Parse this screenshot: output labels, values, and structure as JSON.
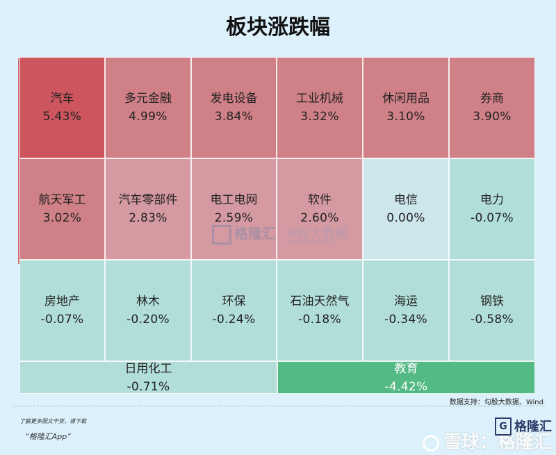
{
  "title": "板块涨跌幅",
  "chart_data": {
    "type": "heatmap",
    "title": "板块涨跌幅",
    "rows": [
      [
        {
          "name": "汽车",
          "value": "5.43%"
        },
        {
          "name": "多元金融",
          "value": "4.99%"
        },
        {
          "name": "发电设备",
          "value": "3.84%"
        },
        {
          "name": "工业机械",
          "value": "3.32%"
        },
        {
          "name": "休闲用品",
          "value": "3.10%"
        },
        {
          "name": "券商",
          "value": "3.90%"
        }
      ],
      [
        {
          "name": "航天军工",
          "value": "3.02%"
        },
        {
          "name": "汽车零部件",
          "value": "2.83%"
        },
        {
          "name": "电工电网",
          "value": "2.59%"
        },
        {
          "name": "软件",
          "value": "2.60%"
        },
        {
          "name": "电信",
          "value": "0.00%"
        },
        {
          "name": "电力",
          "value": "-0.07%"
        }
      ],
      [
        {
          "name": "房地产",
          "value": "-0.07%"
        },
        {
          "name": "林木",
          "value": "-0.20%"
        },
        {
          "name": "环保",
          "value": "-0.24%"
        },
        {
          "name": "石油天然气",
          "value": "-0.18%"
        },
        {
          "name": "海运",
          "value": "-0.34%"
        },
        {
          "name": "钢铁",
          "value": "-0.58%"
        }
      ],
      [
        {
          "name": "日用化工",
          "value": "-0.71%"
        },
        {
          "name": "教育",
          "value": "-4.42%"
        }
      ]
    ],
    "colors": {
      "strong_up": "#cd565e",
      "up": "#d08087",
      "light_up": "#d59aa1",
      "flat": "#cde6ec",
      "down": "#b2ded9",
      "strong_down": "#53b985"
    }
  },
  "watermark": {
    "logo_text": "格隆汇",
    "text": "勾股大数据",
    "site": "www.gogudata.com"
  },
  "source": "数据支持：勾股大数据、Wind",
  "footer": {
    "line1": "了解更多图文干货，请下载",
    "line2": "“格隆汇App”"
  },
  "brand": {
    "box_glyph": "G",
    "name": "格隆汇"
  },
  "xueqiu": "雪球：格隆汇"
}
